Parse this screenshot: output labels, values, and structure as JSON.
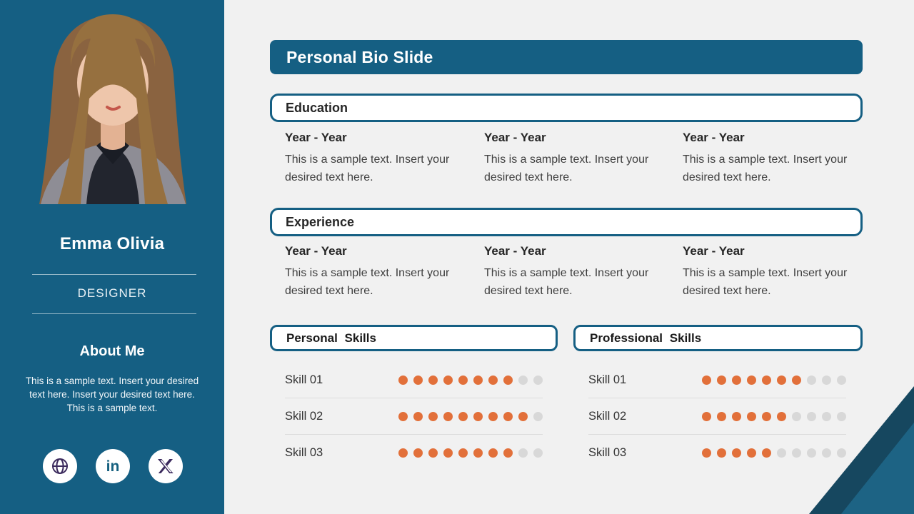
{
  "colors": {
    "teal": "#155f83",
    "corner_dark": "#16475f",
    "corner_light": "#1d6384",
    "orange_dot": "#e2703a",
    "gray_dot": "#d8d8d8",
    "background": "#f1f1f1"
  },
  "sidebar": {
    "name": "Emma Olivia",
    "role": "DESIGNER",
    "about_title": "About Me",
    "about_text": "This is a sample text. Insert your desired text here. Insert your desired text here. This is a sample text.",
    "social": {
      "website_icon": "globe-icon",
      "linkedin_icon": "linkedin-icon",
      "linkedin_glyph": "in",
      "x_icon": "x-icon"
    }
  },
  "main": {
    "title": "Personal Bio Slide",
    "sections": [
      {
        "title": "Education",
        "entries": [
          {
            "period": "Year - Year",
            "text": "This is a sample text. Insert your desired text here."
          },
          {
            "period": "Year - Year",
            "text": "This is a sample text. Insert your desired text here."
          },
          {
            "period": "Year - Year",
            "text": "This is a sample text. Insert your desired text here."
          }
        ]
      },
      {
        "title": "Experience",
        "entries": [
          {
            "period": "Year - Year",
            "text": "This is a sample text. Insert your desired text here."
          },
          {
            "period": "Year - Year",
            "text": "This is a sample text. Insert your desired text here."
          },
          {
            "period": "Year - Year",
            "text": "This is a sample text. Insert your desired text here."
          }
        ]
      }
    ],
    "skills_panels": [
      {
        "title": "Personal  Skills",
        "skills": [
          {
            "label": "Skill 01",
            "filled": 8,
            "total": 10
          },
          {
            "label": "Skill 02",
            "filled": 9,
            "total": 10
          },
          {
            "label": "Skill 03",
            "filled": 8,
            "total": 10
          }
        ]
      },
      {
        "title": "Professional  Skills",
        "skills": [
          {
            "label": "Skill 01",
            "filled": 7,
            "total": 10
          },
          {
            "label": "Skill 02",
            "filled": 6,
            "total": 10
          },
          {
            "label": "Skill 03",
            "filled": 5,
            "total": 10
          }
        ]
      }
    ]
  }
}
